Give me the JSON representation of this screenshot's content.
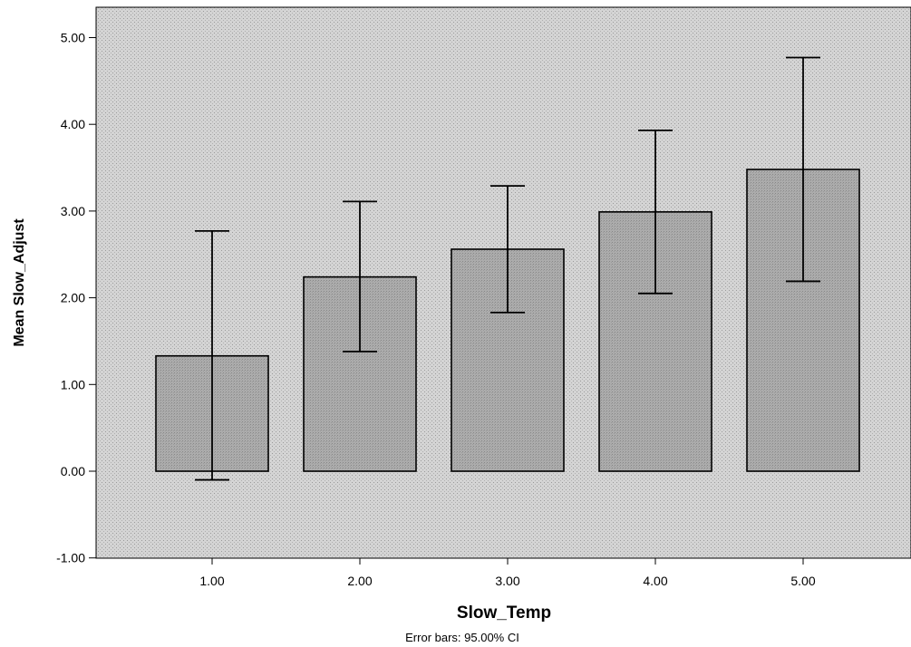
{
  "chart_data": {
    "type": "bar",
    "title": "",
    "xlabel": "Slow_Temp",
    "ylabel": "Mean Slow_Adjust",
    "categories": [
      "1.00",
      "2.00",
      "3.00",
      "4.00",
      "5.00"
    ],
    "values": [
      1.33,
      2.24,
      2.56,
      2.99,
      3.48
    ],
    "error_low": [
      -0.1,
      1.38,
      1.83,
      2.05,
      2.19
    ],
    "error_high": [
      2.77,
      3.11,
      3.29,
      3.93,
      4.77
    ],
    "ylim": [
      -1.0,
      5.2
    ],
    "yticks": [
      "-1.00",
      "0.00",
      "1.00",
      "2.00",
      "3.00",
      "4.00",
      "5.00"
    ],
    "ytick_values": [
      -1,
      0,
      1,
      2,
      3,
      4,
      5
    ],
    "grid": false,
    "note": "Error bars: 95.00% CI",
    "colors": {
      "plot_bg": "#d2d2d2",
      "bar_fill": "#a9a9a9",
      "stroke": "#000000"
    }
  }
}
